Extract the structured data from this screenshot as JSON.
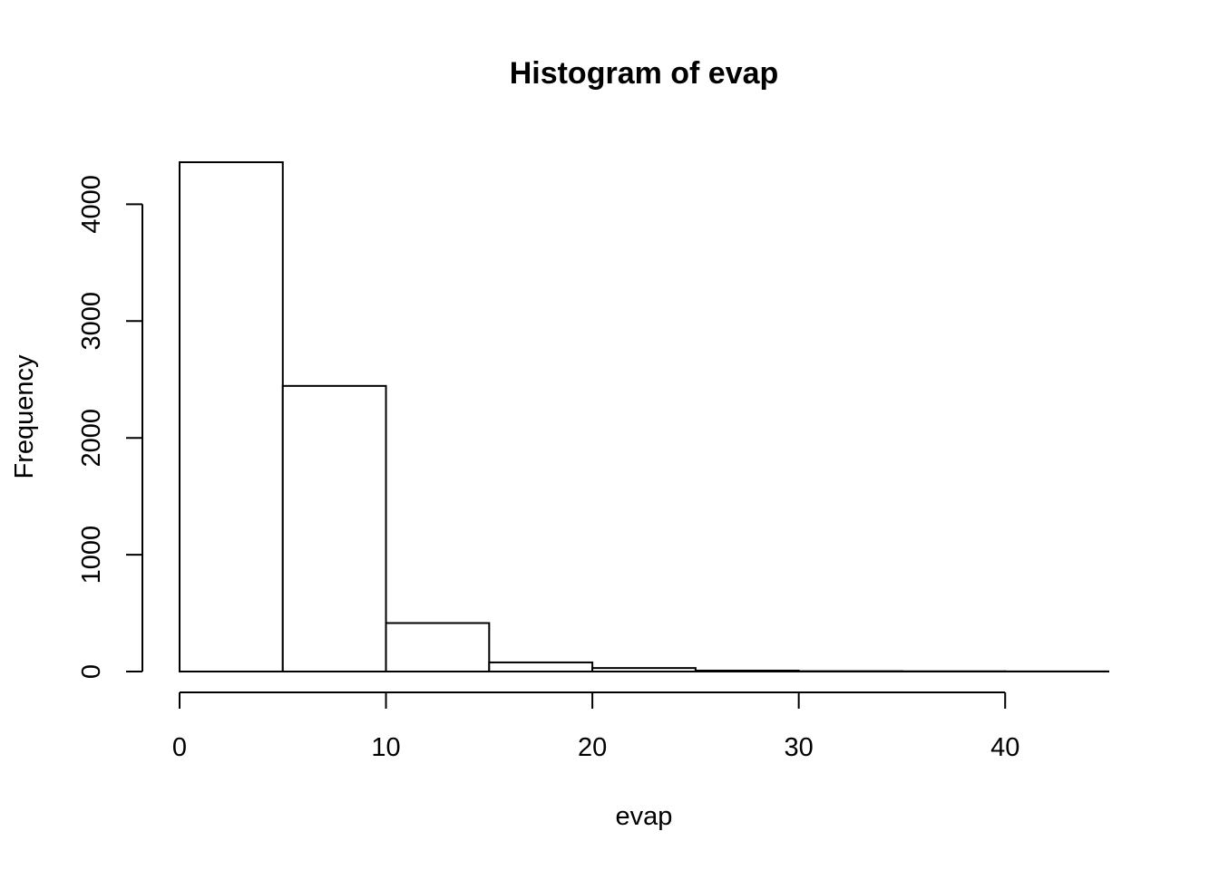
{
  "chart_data": {
    "type": "bar",
    "title": "Histogram of evap",
    "xlabel": "evap",
    "ylabel": "Frequency",
    "bin_edges": [
      0,
      5,
      10,
      15,
      20,
      25,
      30,
      35,
      40,
      45
    ],
    "values": [
      4360,
      2445,
      415,
      78,
      30,
      8,
      3,
      2,
      1
    ],
    "xlim": [
      0,
      45
    ],
    "ylim": [
      0,
      4360
    ],
    "x_ticks": [
      0,
      10,
      20,
      30,
      40
    ],
    "y_ticks": [
      0,
      1000,
      2000,
      3000,
      4000
    ],
    "x_tick_labels": [
      "0",
      "10",
      "20",
      "30",
      "40"
    ],
    "y_tick_labels": [
      "0",
      "1000",
      "2000",
      "3000",
      "4000"
    ],
    "bar_fill": "#ffffff",
    "bar_stroke": "#000000",
    "grid": false,
    "legend": "none"
  }
}
